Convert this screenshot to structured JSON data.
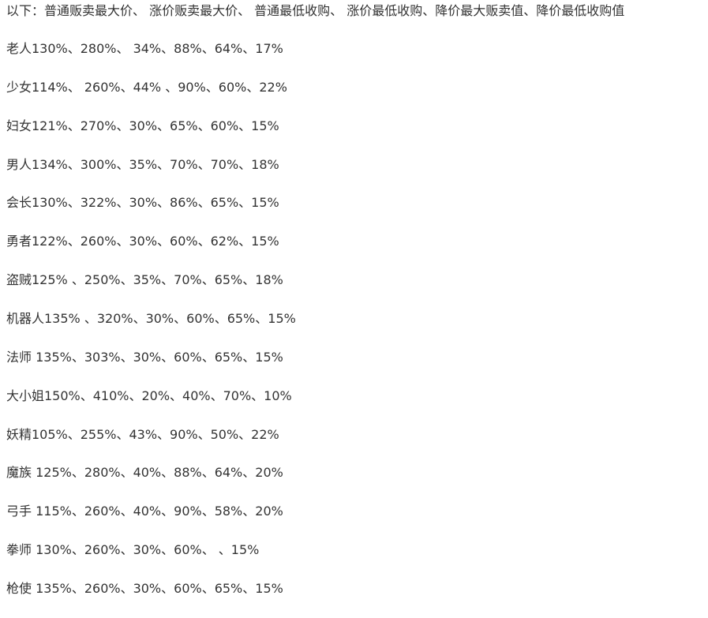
{
  "intro": "以下：普通贩卖最大价、 涨价贩卖最大价、 普通最低收购、 涨价最低收购、降价最大贩卖值、降价最低收购值",
  "rows": [
    "老人130%、280%、 34%、88%、64%、17%",
    "少女114%、 260%、44% 、90%、60%、22%",
    "妇女121%、270%、30%、65%、60%、15%",
    "男人134%、300%、35%、70%、70%、18%",
    "会长130%、322%、30%、86%、65%、15%",
    "勇者122%、260%、30%、60%、62%、15%",
    "盗贼125% 、250%、35%、70%、65%、18%",
    "机器人135% 、320%、30%、60%、65%、15%",
    "法师 135%、303%、30%、60%、65%、15%",
    "大小姐150%、410%、20%、40%、70%、10%",
    "妖精105%、255%、43%、90%、50%、22%",
    "魔族 125%、280%、40%、88%、64%、20%",
    "弓手 115%、260%、40%、90%、58%、20%",
    "拳师 130%、260%、30%、60%、 、15%",
    "枪使 135%、260%、30%、60%、65%、15%"
  ]
}
